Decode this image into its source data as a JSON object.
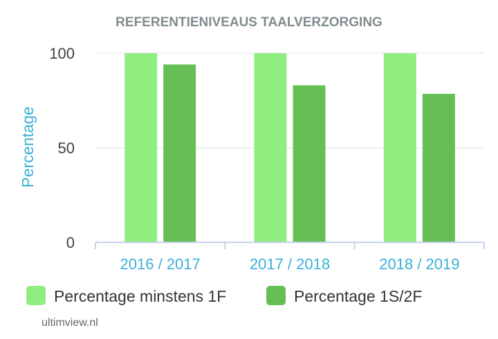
{
  "chart_data": {
    "type": "bar",
    "title": "REFERENTIENIVEAUS TAALVERZORGING",
    "xlabel": "",
    "ylabel": "Percentage",
    "ylim": [
      0,
      100
    ],
    "yticks": [
      0,
      50,
      100
    ],
    "categories": [
      "2016 / 2017",
      "2017 / 2018",
      "2018 / 2019"
    ],
    "series": [
      {
        "name": "Percentage minstens 1F",
        "color": "#90ee80",
        "values": [
          100,
          100,
          100
        ]
      },
      {
        "name": "Percentage 1S/2F",
        "color": "#66bf55",
        "values": [
          94,
          83,
          78.5
        ]
      }
    ],
    "grid": true,
    "legend_position": "bottom"
  },
  "colors": {
    "title": "#7f8c8d",
    "axis_label": "#3ab0d8",
    "tick_label": "#404040",
    "gridline": "#e8ecf0",
    "axis_line": "#c5d2e8"
  },
  "footer": {
    "source": "ultimview.nl"
  }
}
